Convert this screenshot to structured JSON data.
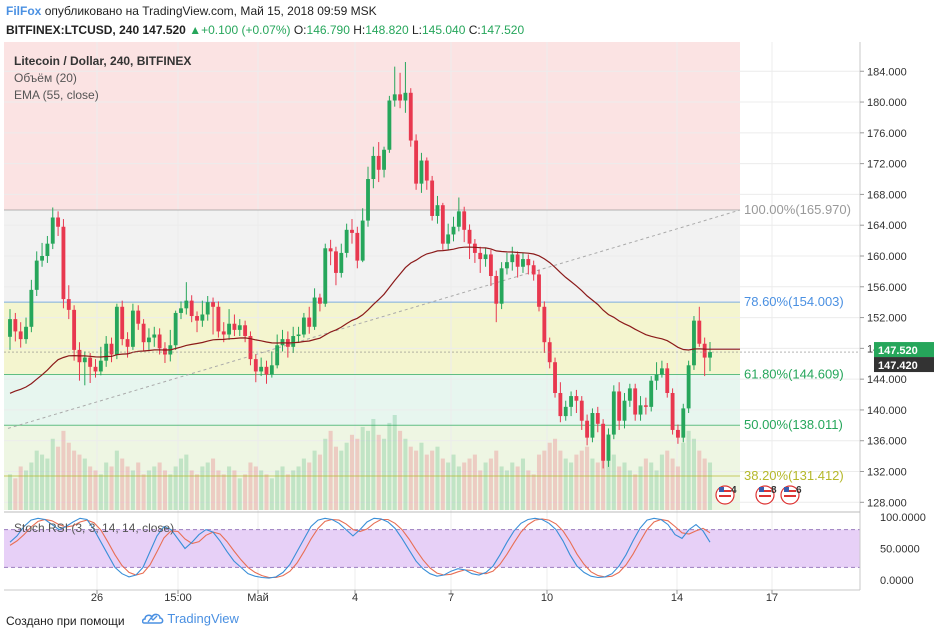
{
  "header": {
    "author": "FilFox",
    "published": "опубликовано на TradingView.com, Май 15, 2018 09:59 MSK",
    "symbol": "BITFINEX:LTCUSD, 240",
    "last": "147.520",
    "change": "+0.100 (+0.07%)",
    "o_label": "O:",
    "o_value": "146.790",
    "h_label": "H:",
    "h_value": "148.820",
    "l_label": "L:",
    "l_value": "145.040",
    "c_label": "C:",
    "c_value": "147.520"
  },
  "legend": {
    "title": "Litecoin / Dollar, 240, BITFINEX",
    "volume": "Объём (20)",
    "ema": "EMA (55, close)",
    "stoch": "Stoch RSI (3, 3, 14, 14, close)"
  },
  "footer": {
    "made_with": "Создано при помощи",
    "brand": "TradingView"
  },
  "colors": {
    "up": "#26a65b",
    "down": "#e8384f",
    "ema": "#8b1a1a",
    "stoch_k": "#3a8fd8",
    "stoch_d": "#e86f55"
  },
  "chart_data": {
    "type": "candlestick",
    "y_range": [
      127,
      187.8
    ],
    "y_ticks": [
      "184.000",
      "180.000",
      "176.000",
      "172.000",
      "168.000",
      "164.000",
      "160.000",
      "156.000",
      "152.000",
      "148.000",
      "144.000",
      "140.000",
      "136.000",
      "132.000",
      "128.000"
    ],
    "x_ticks": [
      "26",
      "15:00",
      "Май",
      "4",
      "7",
      "10",
      "14",
      "17"
    ],
    "fib_levels": [
      {
        "label": "100.00%(165.970)",
        "value": 165.97
      },
      {
        "label": "78.60%(154.003)",
        "value": 154.003
      },
      {
        "label": "61.80%(144.609)",
        "value": 144.609
      },
      {
        "label": "50.00%(138.011)",
        "value": 138.011
      },
      {
        "label": "38.20%(131.412)",
        "value": 131.412
      }
    ],
    "price_labels": [
      "147.520",
      "147.420"
    ],
    "candles": [
      [
        149.5,
        151.8,
        153.1,
        147.8
      ],
      [
        151.8,
        150.2,
        152.6,
        148.9
      ],
      [
        150.2,
        149.2,
        151.4,
        148.1
      ],
      [
        149.2,
        150.8,
        152,
        148.6
      ],
      [
        150.8,
        155.6,
        156.9,
        150.1
      ],
      [
        155.6,
        159.4,
        160.6,
        154.8
      ],
      [
        159.4,
        160.0,
        161.7,
        158.6
      ],
      [
        160.0,
        161.6,
        162.6,
        159.1
      ],
      [
        161.6,
        165.0,
        166.3,
        160.9
      ],
      [
        165.0,
        163.8,
        165.8,
        162.6
      ],
      [
        163.8,
        154.4,
        164.8,
        153.2
      ],
      [
        154.4,
        153.0,
        156.2,
        151.8
      ],
      [
        153.0,
        147.8,
        153.6,
        146.4
      ],
      [
        147.8,
        146.2,
        148.8,
        143.8
      ],
      [
        146.2,
        146.8,
        147.6,
        143.2
      ],
      [
        146.8,
        145.6,
        147.4,
        143.5
      ],
      [
        145.6,
        145.0,
        146.6,
        144.2
      ],
      [
        145.0,
        146.4,
        148.2,
        144.5
      ],
      [
        146.4,
        148.6,
        149.6,
        145.6
      ],
      [
        148.6,
        147.2,
        149.4,
        146.2
      ],
      [
        147.2,
        153.4,
        153.8,
        146.6
      ],
      [
        153.4,
        149.2,
        154.2,
        148.4
      ],
      [
        149.2,
        148.2,
        150.1,
        146.8
      ],
      [
        148.2,
        152.9,
        153.8,
        147.8
      ],
      [
        152.9,
        151.2,
        153.6,
        150.4
      ],
      [
        151.2,
        148.8,
        151.8,
        147.6
      ],
      [
        148.8,
        149.4,
        150.6,
        147.8
      ],
      [
        149.4,
        149.8,
        150.8,
        148.2
      ],
      [
        149.8,
        148.0,
        150.6,
        147.2
      ],
      [
        148.0,
        147.2,
        148.8,
        146.1
      ],
      [
        147.2,
        148.4,
        150.4,
        146.3
      ],
      [
        148.4,
        152.6,
        152.9,
        147.8
      ],
      [
        152.6,
        153.2,
        154.1,
        151.8
      ],
      [
        153.2,
        154.2,
        156.6,
        152.4
      ],
      [
        154.2,
        152.2,
        154.9,
        151.4
      ],
      [
        152.2,
        151.6,
        152.8,
        150.1
      ],
      [
        151.6,
        152.4,
        154.2,
        150.8
      ],
      [
        152.4,
        154.0,
        154.8,
        151.6
      ],
      [
        154.0,
        153.4,
        154.6,
        149.8
      ],
      [
        153.4,
        150.2,
        154.1,
        149.4
      ],
      [
        150.2,
        149.8,
        151.4,
        148.8
      ],
      [
        149.8,
        151.2,
        153.1,
        149.1
      ],
      [
        151.2,
        150.4,
        152.4,
        149.6
      ],
      [
        150.4,
        151.0,
        151.8,
        149.6
      ],
      [
        151.0,
        149.6,
        151.6,
        148.8
      ],
      [
        149.6,
        146.6,
        150.2,
        145.8
      ],
      [
        146.6,
        145.0,
        147.2,
        143.6
      ],
      [
        145.0,
        145.6,
        146.8,
        144.4
      ],
      [
        145.6,
        144.6,
        146.4,
        143.4
      ],
      [
        144.6,
        145.8,
        147.6,
        144.2
      ],
      [
        145.8,
        148.4,
        149.8,
        145.4
      ],
      [
        148.4,
        149.2,
        150.4,
        147.6
      ],
      [
        149.2,
        148.2,
        150.2,
        146.8
      ],
      [
        148.2,
        149.6,
        150.8,
        147.4
      ],
      [
        149.6,
        149.8,
        150.8,
        148.8
      ],
      [
        149.8,
        152.0,
        152.6,
        149.4
      ],
      [
        152.0,
        150.8,
        153.4,
        149.9
      ],
      [
        150.8,
        154.6,
        155.8,
        150.4
      ],
      [
        154.6,
        153.8,
        155.1,
        152.8
      ],
      [
        153.8,
        161.0,
        161.6,
        153.4
      ],
      [
        161.0,
        160.6,
        162.1,
        158.8
      ],
      [
        160.6,
        157.8,
        161.2,
        156.2
      ],
      [
        157.8,
        160.4,
        161.6,
        157.2
      ],
      [
        160.4,
        163.4,
        164.2,
        159.8
      ],
      [
        163.4,
        163.0,
        164.8,
        161.6
      ],
      [
        163.0,
        159.4,
        163.8,
        158.4
      ],
      [
        159.4,
        164.6,
        166.2,
        159.2
      ],
      [
        164.6,
        170.0,
        171.6,
        163.8
      ],
      [
        170.0,
        173.0,
        174.2,
        168.8
      ],
      [
        173.0,
        171.2,
        174.8,
        169.6
      ],
      [
        171.2,
        173.8,
        174.2,
        170.2
      ],
      [
        173.8,
        180.2,
        180.8,
        173.4
      ],
      [
        180.2,
        181.0,
        184.6,
        179.4
      ],
      [
        181.0,
        180.2,
        183.8,
        179.2
      ],
      [
        180.2,
        181.2,
        185.2,
        178.6
      ],
      [
        181.2,
        175.0,
        181.8,
        174.2
      ],
      [
        175.0,
        169.4,
        175.8,
        168.6
      ],
      [
        169.4,
        172.4,
        173.4,
        168.2
      ],
      [
        172.4,
        169.8,
        172.8,
        168.6
      ],
      [
        169.8,
        165.2,
        170.4,
        164.6
      ],
      [
        165.2,
        166.6,
        167.8,
        164.2
      ],
      [
        166.6,
        161.6,
        166.9,
        160.8
      ],
      [
        161.6,
        162.8,
        164.2,
        160.8
      ],
      [
        162.8,
        163.8,
        165.1,
        161.9
      ],
      [
        163.8,
        165.8,
        167.6,
        163.2
      ],
      [
        165.8,
        163.4,
        166.4,
        161.8
      ],
      [
        163.4,
        161.6,
        164.1,
        159.6
      ],
      [
        161.6,
        160.4,
        162.2,
        159.1
      ],
      [
        160.4,
        159.6,
        161.2,
        157.8
      ],
      [
        159.6,
        160.2,
        161.1,
        158.6
      ],
      [
        160.2,
        157.4,
        160.8,
        156.1
      ],
      [
        157.4,
        153.8,
        158.1,
        151.4
      ],
      [
        153.8,
        158.4,
        159.2,
        153.1
      ],
      [
        158.4,
        159.2,
        160.4,
        157.6
      ],
      [
        159.2,
        160.2,
        161.2,
        158.1
      ],
      [
        160.2,
        158.6,
        160.6,
        157.2
      ],
      [
        158.6,
        159.6,
        160.4,
        157.8
      ],
      [
        159.6,
        158.8,
        160.2,
        157.6
      ],
      [
        158.8,
        157.6,
        159.4,
        156.8
      ],
      [
        157.6,
        153.4,
        158.2,
        152.8
      ],
      [
        153.4,
        148.8,
        154.1,
        147.4
      ],
      [
        148.8,
        146.2,
        149.4,
        145.4
      ],
      [
        146.2,
        142.2,
        146.8,
        141.6
      ],
      [
        142.2,
        139.2,
        143.6,
        138.4
      ],
      [
        139.2,
        140.4,
        141.2,
        138.6
      ],
      [
        140.4,
        141.8,
        142.4,
        139.2
      ],
      [
        141.8,
        141.2,
        142.6,
        139.6
      ],
      [
        141.2,
        138.6,
        141.8,
        137.4
      ],
      [
        138.6,
        136.4,
        139.4,
        135.4
      ],
      [
        136.4,
        139.6,
        140.2,
        135.8
      ],
      [
        139.6,
        138.2,
        140.4,
        137.1
      ],
      [
        138.2,
        133.4,
        138.8,
        132.4
      ],
      [
        133.4,
        136.8,
        137.6,
        132.6
      ],
      [
        136.8,
        142.4,
        143.2,
        136.2
      ],
      [
        142.4,
        138.6,
        143.6,
        137.4
      ],
      [
        138.6,
        141.2,
        142.2,
        137.6
      ],
      [
        141.2,
        142.8,
        143.4,
        140.4
      ],
      [
        142.8,
        139.4,
        143.4,
        138.6
      ],
      [
        139.4,
        140.6,
        141.8,
        138.6
      ],
      [
        140.6,
        140.4,
        141.6,
        139.4
      ],
      [
        140.4,
        143.8,
        144.4,
        139.8
      ],
      [
        143.8,
        144.6,
        146.2,
        142.6
      ],
      [
        144.6,
        145.4,
        146.4,
        144.2
      ],
      [
        145.4,
        142.2,
        146.1,
        141.6
      ],
      [
        142.2,
        137.4,
        142.8,
        136.8
      ],
      [
        137.4,
        136.4,
        138.1,
        135.6
      ],
      [
        136.4,
        140.2,
        140.8,
        135.8
      ],
      [
        140.2,
        145.8,
        146.4,
        139.6
      ],
      [
        145.8,
        151.6,
        152.2,
        145.2
      ],
      [
        151.6,
        148.6,
        153.4,
        148.2
      ],
      [
        148.6,
        146.8,
        149.4,
        144.4
      ],
      [
        146.8,
        147.52,
        148.82,
        145.04
      ]
    ],
    "volume": [
      18,
      16,
      22,
      20,
      24,
      30,
      28,
      26,
      36,
      32,
      40,
      34,
      30,
      28,
      26,
      22,
      20,
      18,
      24,
      22,
      30,
      26,
      22,
      20,
      24,
      18,
      20,
      22,
      24,
      20,
      18,
      22,
      26,
      28,
      20,
      18,
      22,
      24,
      26,
      20,
      18,
      22,
      20,
      16,
      18,
      24,
      22,
      20,
      18,
      16,
      20,
      22,
      18,
      20,
      22,
      26,
      24,
      30,
      28,
      36,
      40,
      32,
      30,
      34,
      38,
      36,
      42,
      40,
      46,
      38,
      36,
      44,
      48,
      40,
      36,
      32,
      30,
      34,
      28,
      30,
      32,
      26,
      24,
      28,
      22,
      24,
      26,
      28,
      20,
      24,
      26,
      30,
      22,
      20,
      24,
      22,
      26,
      20,
      18,
      28,
      30,
      34,
      36,
      30,
      26,
      24,
      28,
      30,
      32,
      26,
      24,
      36,
      30,
      28,
      22,
      24,
      20,
      18,
      22,
      26,
      24,
      20,
      28,
      30,
      26,
      22,
      34,
      40,
      36,
      30,
      26,
      24
    ],
    "stoch_rsi_k": [
      60,
      70,
      85,
      95,
      98,
      96,
      88,
      80,
      85,
      92,
      98,
      96,
      80,
      60,
      40,
      20,
      10,
      5,
      8,
      20,
      45,
      70,
      85,
      80,
      65,
      50,
      60,
      72,
      80,
      76,
      62,
      45,
      30,
      20,
      10,
      6,
      4,
      3,
      5,
      12,
      25,
      45,
      65,
      85,
      95,
      98,
      96,
      90,
      80,
      70,
      80,
      92,
      98,
      97,
      92,
      82,
      66,
      48,
      30,
      18,
      10,
      6,
      8,
      14,
      18,
      16,
      10,
      8,
      12,
      22,
      40,
      60,
      78,
      90,
      96,
      98,
      96,
      90,
      80,
      62,
      40,
      22,
      12,
      6,
      4,
      5,
      10,
      22,
      40,
      62,
      82,
      95,
      98,
      96,
      88,
      72,
      66,
      80,
      88,
      78,
      60
    ],
    "stoch_rsi_d": [
      55,
      62,
      72,
      84,
      93,
      96,
      94,
      88,
      84,
      86,
      92,
      95,
      91,
      79,
      60,
      40,
      23,
      12,
      8,
      11,
      24,
      45,
      67,
      78,
      77,
      65,
      58,
      61,
      71,
      76,
      73,
      61,
      46,
      32,
      20,
      12,
      7,
      4,
      4,
      7,
      14,
      27,
      45,
      65,
      82,
      93,
      96,
      95,
      89,
      80,
      77,
      81,
      90,
      96,
      96,
      90,
      80,
      65,
      48,
      32,
      19,
      11,
      8,
      9,
      13,
      16,
      15,
      11,
      10,
      14,
      25,
      41,
      59,
      76,
      88,
      95,
      97,
      95,
      89,
      78,
      61,
      41,
      25,
      13,
      7,
      5,
      6,
      12,
      24,
      41,
      61,
      80,
      92,
      96,
      94,
      85,
      75,
      73,
      78,
      82,
      75
    ]
  }
}
